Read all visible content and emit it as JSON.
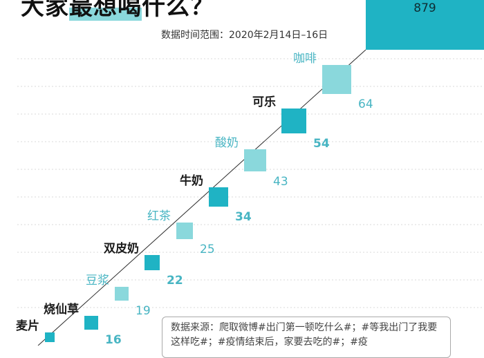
{
  "title": {
    "prefix": "大家",
    "highlight": "最想喝",
    "suffix": "什么？"
  },
  "date_range": "数据时间范围：2020年2月14日–16日",
  "source_note": "数据来源：爬取微博#出门第一顿吃什么#；#等我出门了我要这样吃#；#疫情结束后，家要去吃的#；#疫",
  "colors": {
    "dark": "#1fb3c4",
    "light": "#8ad8dc",
    "label_dark": "#1a1a1a",
    "label_light": "#48b5c3",
    "value": "#48b5c3",
    "grid": "#d9d9d9",
    "line": "#2b2b2b"
  },
  "chart_data": {
    "type": "bar",
    "title": "",
    "xlabel": "",
    "ylabel": "",
    "categories": [
      "麦片",
      "烧仙草",
      "豆浆",
      "双皮奶",
      "红茶",
      "牛奶",
      "酸奶",
      "可乐",
      "咖啡",
      ""
    ],
    "values": [
      null,
      16,
      19,
      22,
      25,
      34,
      43,
      54,
      64,
      879
    ],
    "value_labels": [
      "",
      "16",
      "19",
      "22",
      "25",
      "34",
      "43",
      "54",
      "64",
      "879"
    ],
    "shade": [
      "dark",
      "dark",
      "light",
      "dark",
      "light",
      "dark",
      "light",
      "dark",
      "light",
      "dark"
    ],
    "grid": true
  }
}
